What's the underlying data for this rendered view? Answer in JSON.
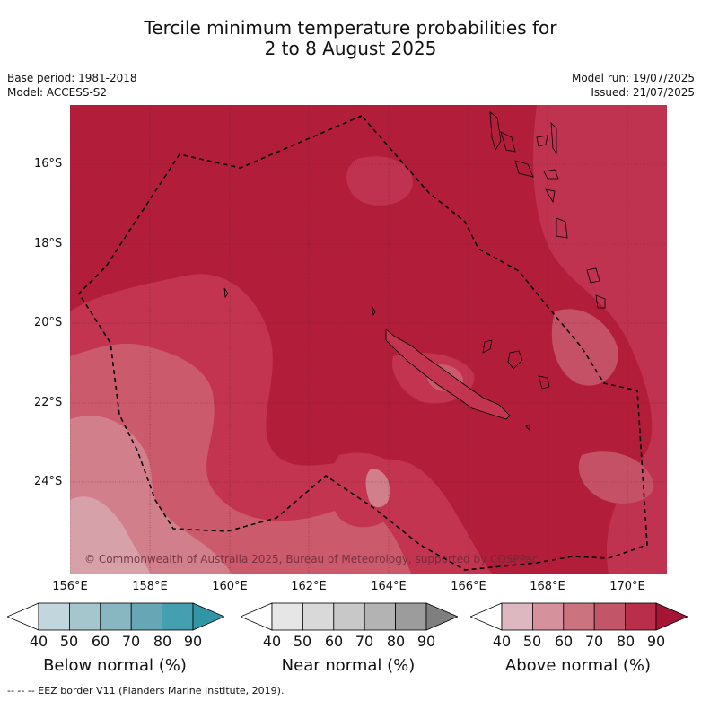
{
  "title_line1": "Tercile minimum temperature probabilities for",
  "title_line2": "2 to 8 August 2025",
  "meta": {
    "base_period": "Base period: 1981-2018",
    "model": "Model: ACCESS-S2",
    "model_run": "Model run: 19/07/2025",
    "issued": "Issued: 21/07/2025"
  },
  "copyright": "© Commonwealth of Australia 2025, Bureau of Meteorology, supported by COSPPac",
  "latitudes": [
    "16°S",
    "18°S",
    "20°S",
    "22°S",
    "24°S"
  ],
  "longitudes": [
    "156°E",
    "158°E",
    "160°E",
    "162°E",
    "164°E",
    "166°E",
    "168°E",
    "170°E"
  ],
  "colorbars": [
    {
      "label": "Below normal (%)",
      "ticks": [
        "40",
        "50",
        "60",
        "70",
        "80",
        "90"
      ],
      "colors": [
        "#ffffff",
        "#c2d7dd",
        "#a6c6cd",
        "#88b6c1",
        "#67a6b4",
        "#44a0b0",
        "#3295a6"
      ]
    },
    {
      "label": "Near normal (%)",
      "ticks": [
        "40",
        "50",
        "60",
        "70",
        "80",
        "90"
      ],
      "colors": [
        "#ffffff",
        "#e6e6e6",
        "#d9d9d9",
        "#c8c8c8",
        "#b3b3b3",
        "#9c9c9c",
        "#7f7f7f"
      ]
    },
    {
      "label": "Above normal (%)",
      "ticks": [
        "40",
        "50",
        "60",
        "70",
        "80",
        "90"
      ],
      "colors": [
        "#ffffff",
        "#ddb8c0",
        "#d6929c",
        "#cb747f",
        "#c25568",
        "#b92f4b",
        "#a61535"
      ]
    }
  ],
  "footer": "--  --  -- EEZ border V11 (Flanders Marine Institute, 2019)."
}
